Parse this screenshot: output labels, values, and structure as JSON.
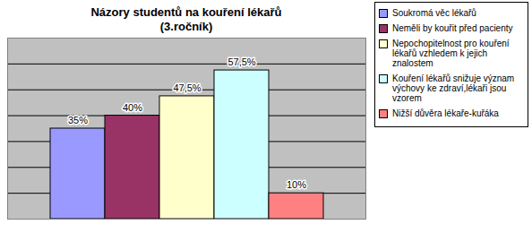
{
  "chart_data": {
    "type": "bar",
    "title": "Názory studentů na kouření lékařů\n(3.ročník)",
    "categories": [
      "Soukromá věc lékařů",
      "Neměli by kouřit před pacienty",
      "Nepochopitelnost pro kouření lékařů vzhledem k jejich znalostem",
      "Kouření lékařů snižuje význam výchovy ke zdraví,lékaři jsou vzorem",
      "Nižší důvěra lékaře-kuřáka"
    ],
    "values": [
      35,
      40,
      47.5,
      57.5,
      10
    ],
    "value_labels": [
      "35%",
      "40%",
      "47,5%",
      "57,5%",
      "10%"
    ],
    "colors": [
      "#9999ff",
      "#993366",
      "#ffffcc",
      "#ccffff",
      "#ff8080"
    ],
    "ylim": [
      0,
      70
    ],
    "yticks": [
      0,
      10,
      20,
      30,
      40,
      50,
      60,
      70
    ],
    "grid": true,
    "legend": "right",
    "data_labels": true,
    "tick_labels": false
  }
}
